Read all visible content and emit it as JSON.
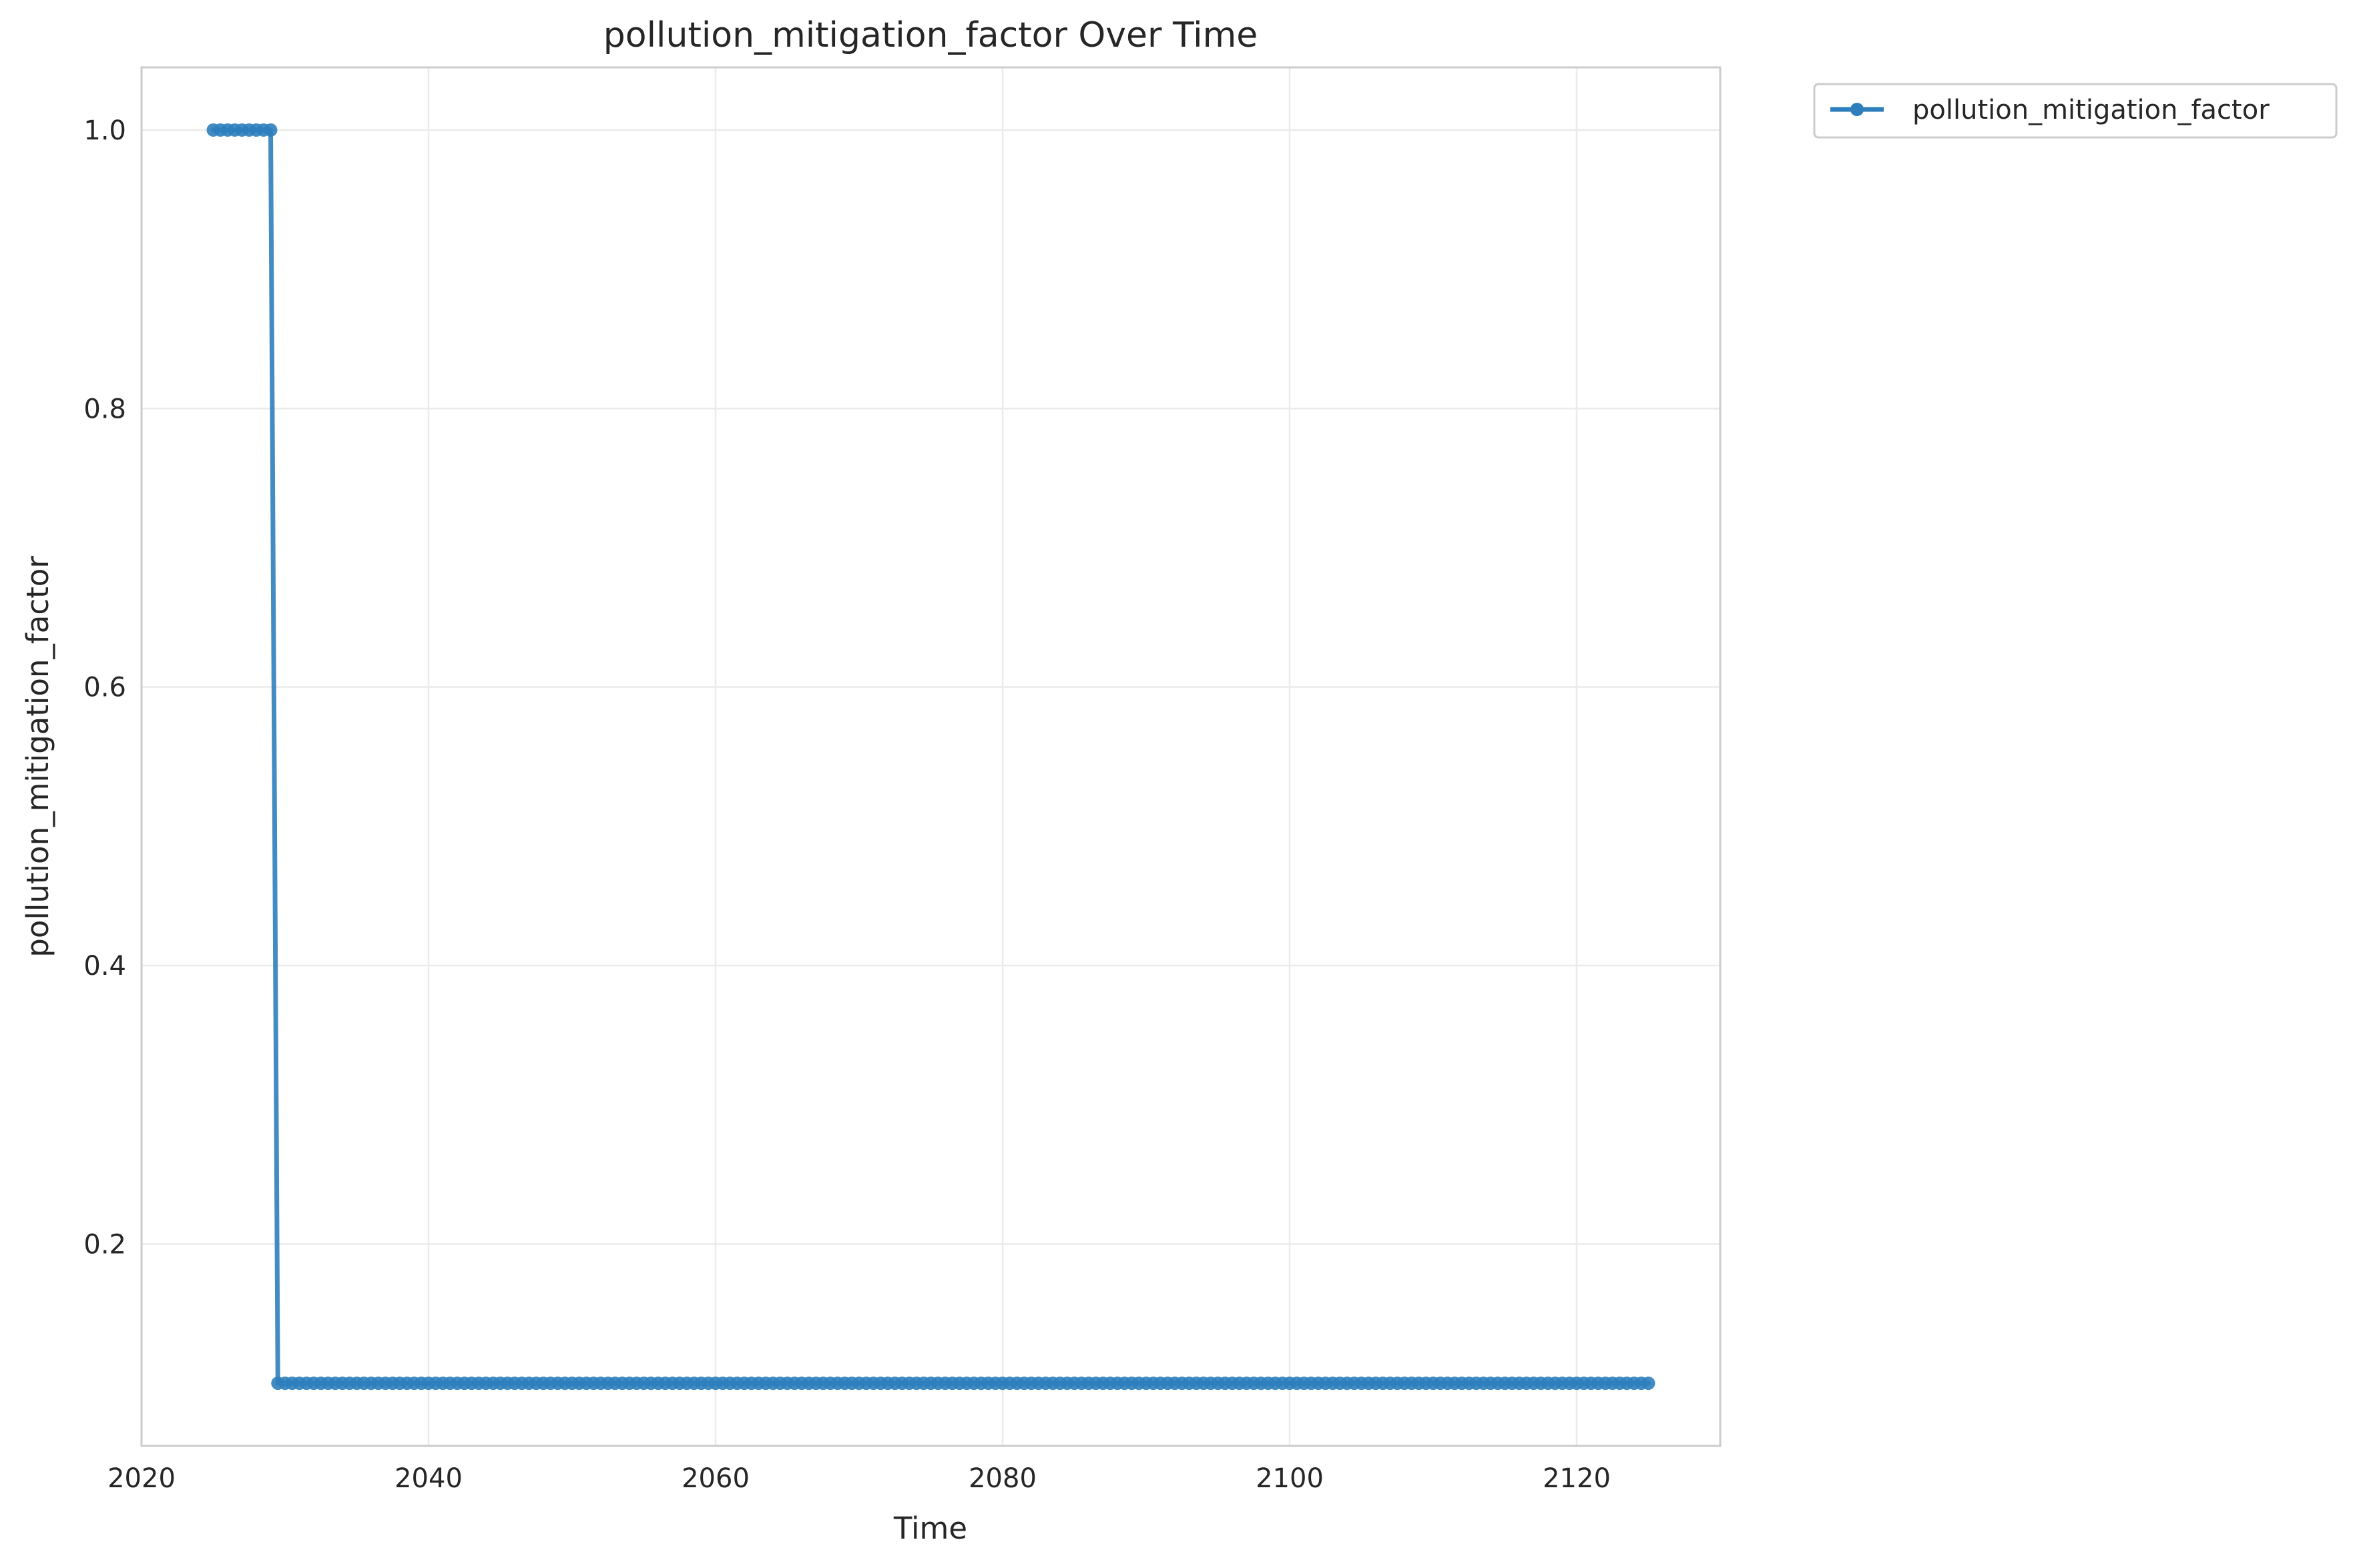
{
  "chart_data": {
    "type": "line",
    "title": "pollution_mitigation_factor Over Time",
    "xlabel": "Time",
    "ylabel": "pollution_mitigation_factor",
    "xlim": [
      2020,
      2130
    ],
    "ylim": [
      0.055,
      1.045
    ],
    "x_ticks": [
      2020,
      2040,
      2060,
      2080,
      2100,
      2120
    ],
    "x_tick_labels": [
      "2020",
      "2040",
      "2060",
      "2080",
      "2100",
      "2120"
    ],
    "y_ticks": [
      0.2,
      0.4,
      0.6,
      0.8,
      1.0
    ],
    "y_tick_labels": [
      "0.2",
      "0.4",
      "0.6",
      "0.8",
      "1.0"
    ],
    "grid": true,
    "legend_position": "outside-top-right",
    "series": [
      {
        "name": "pollution_mitigation_factor",
        "color": "#2e7ebc",
        "marker": "circle",
        "segments": [
          {
            "x_start": 2025,
            "x_end": 2029,
            "step": 0.5,
            "value": 1.0
          },
          {
            "x_start": 2029.5,
            "x_end": 2125,
            "step": 0.5,
            "value": 0.1
          }
        ]
      }
    ]
  }
}
